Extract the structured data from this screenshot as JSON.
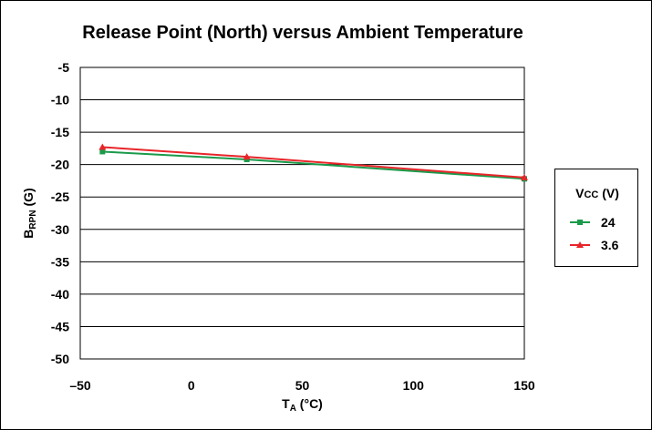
{
  "chart_data": {
    "type": "line",
    "title": "Release Point (North) versus Ambient Temperature",
    "xlabel": {
      "main": "T",
      "sub": "A",
      "unit": " (°C)"
    },
    "ylabel": {
      "main": "B",
      "sub": "RPN",
      "unit": " (G)"
    },
    "xlim": [
      -50,
      150
    ],
    "ylim": [
      -50,
      -5
    ],
    "x_ticks": [
      "–50",
      "0",
      "50",
      "100",
      "150"
    ],
    "x_tick_values": [
      -50,
      0,
      50,
      100,
      150
    ],
    "y_ticks": [
      "-5",
      "-10",
      "-15",
      "-20",
      "-25",
      "-30",
      "-35",
      "-40",
      "-45",
      "-50"
    ],
    "y_tick_values": [
      -5,
      -10,
      -15,
      -20,
      -25,
      -30,
      -35,
      -40,
      -45,
      -50
    ],
    "grid": {
      "horizontal": true,
      "vertical": false
    },
    "legend": {
      "title": {
        "main": "V",
        "sub": "CC",
        "unit": " (V)"
      },
      "placement": "right"
    },
    "series": [
      {
        "name": "24",
        "color": "#1a9a4a",
        "marker": "square",
        "x": [
          -40,
          25,
          150
        ],
        "y": [
          -18.0,
          -19.2,
          -22.2
        ]
      },
      {
        "name": "3.6",
        "color": "#e8252a",
        "marker": "triangle",
        "x": [
          -40,
          25,
          150
        ],
        "y": [
          -17.3,
          -18.8,
          -22.0
        ]
      }
    ]
  }
}
